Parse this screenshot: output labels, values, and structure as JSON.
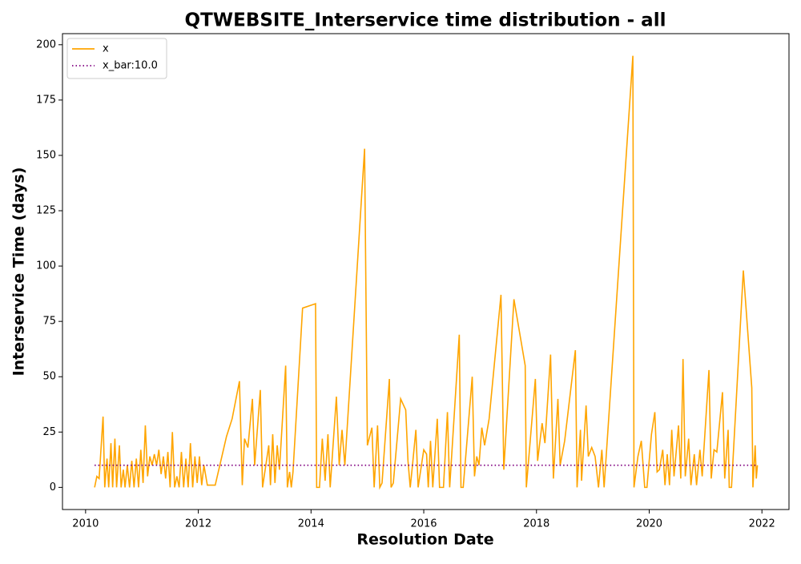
{
  "chart_data": {
    "type": "line",
    "title": "QTWEBSITE_Interservice time distribution - all",
    "xlabel": "Resolution Date",
    "ylabel": "Interservice Time (days)",
    "xlim": [
      2009.59,
      2022.48
    ],
    "xticks": [
      2010,
      2012,
      2014,
      2016,
      2018,
      2020,
      2022
    ],
    "ylim": [
      -10,
      205
    ],
    "yticks": [
      0,
      25,
      50,
      75,
      100,
      125,
      150,
      175,
      200
    ],
    "legend": "upper left",
    "grid": false,
    "series": [
      {
        "name": "x",
        "color": "#ffa500",
        "style": "solid",
        "x": [
          2010.16,
          2010.2,
          2010.24,
          2010.28,
          2010.31,
          2010.34,
          2010.38,
          2010.41,
          2010.45,
          2010.48,
          2010.52,
          2010.55,
          2010.6,
          2010.63,
          2010.67,
          2010.7,
          2010.74,
          2010.78,
          2010.82,
          2010.86,
          2010.9,
          2010.94,
          2010.98,
          2011.02,
          2011.06,
          2011.1,
          2011.14,
          2011.18,
          2011.22,
          2011.26,
          2011.3,
          2011.34,
          2011.38,
          2011.42,
          2011.46,
          2011.5,
          2011.54,
          2011.58,
          2011.62,
          2011.66,
          2011.7,
          2011.74,
          2011.78,
          2011.82,
          2011.86,
          2011.9,
          2011.94,
          2011.98,
          2012.02,
          2012.06,
          2012.1,
          2012.16,
          2012.3,
          2012.5,
          2012.6,
          2012.73,
          2012.78,
          2012.82,
          2012.88,
          2012.96,
          2013.0,
          2013.1,
          2013.14,
          2013.25,
          2013.28,
          2013.32,
          2013.36,
          2013.4,
          2013.44,
          2013.55,
          2013.58,
          2013.62,
          2013.65,
          2013.68,
          2013.85,
          2014.08,
          2014.1,
          2014.15,
          2014.2,
          2014.25,
          2014.3,
          2014.34,
          2014.45,
          2014.5,
          2014.55,
          2014.6,
          2014.95,
          2015.0,
          2015.08,
          2015.12,
          2015.18,
          2015.22,
          2015.26,
          2015.39,
          2015.42,
          2015.46,
          2015.59,
          2015.68,
          2015.72,
          2015.76,
          2015.8,
          2015.86,
          2015.9,
          2016.0,
          2016.05,
          2016.08,
          2016.12,
          2016.16,
          2016.24,
          2016.28,
          2016.35,
          2016.42,
          2016.46,
          2016.63,
          2016.66,
          2016.7,
          2016.86,
          2016.9,
          2016.94,
          2016.98,
          2017.03,
          2017.08,
          2017.16,
          2017.37,
          2017.42,
          2017.6,
          2017.8,
          2017.82,
          2017.98,
          2018.02,
          2018.1,
          2018.15,
          2018.25,
          2018.3,
          2018.38,
          2018.42,
          2018.5,
          2018.69,
          2018.72,
          2018.78,
          2018.8,
          2018.88,
          2018.92,
          2018.98,
          2019.04,
          2019.1,
          2019.16,
          2019.2,
          2019.71,
          2019.73,
          2019.8,
          2019.86,
          2019.92,
          2019.96,
          2020.04,
          2020.1,
          2020.14,
          2020.18,
          2020.24,
          2020.28,
          2020.32,
          2020.36,
          2020.4,
          2020.44,
          2020.52,
          2020.56,
          2020.6,
          2020.64,
          2020.7,
          2020.74,
          2020.8,
          2020.84,
          2020.9,
          2020.94,
          2021.06,
          2021.1,
          2021.15,
          2021.2,
          2021.3,
          2021.34,
          2021.4,
          2021.42,
          2021.46,
          2021.67,
          2021.82,
          2021.84,
          2021.88,
          2021.9,
          2021.92
        ],
        "values": [
          0,
          5,
          4,
          20,
          32,
          0,
          13,
          0,
          20,
          0,
          22,
          0,
          19,
          0,
          8,
          0,
          10,
          0,
          12,
          0,
          13,
          0,
          17,
          2,
          28,
          5,
          14,
          10,
          15,
          10,
          17,
          6,
          14,
          4,
          16,
          0,
          25,
          0,
          5,
          0,
          16,
          0,
          13,
          0,
          20,
          0,
          14,
          2,
          14,
          1,
          10,
          1,
          1,
          23,
          31,
          48,
          1,
          22,
          18,
          40,
          10,
          44,
          0,
          19,
          1,
          24,
          2,
          19,
          8,
          55,
          0,
          7,
          0,
          7,
          81,
          83,
          0,
          0,
          22,
          3,
          24,
          0,
          41,
          10,
          26,
          10,
          153,
          19,
          27,
          0,
          28,
          0,
          2,
          49,
          0,
          2,
          40,
          35,
          12,
          0,
          10,
          26,
          0,
          17,
          15,
          0,
          21,
          0,
          31,
          0,
          0,
          34,
          0,
          69,
          0,
          0,
          50,
          5,
          14,
          10,
          27,
          19,
          31,
          87,
          8,
          85,
          55,
          0,
          49,
          12,
          29,
          20,
          60,
          4,
          40,
          10,
          21,
          62,
          0,
          26,
          3,
          37,
          14,
          18,
          14,
          0,
          17,
          0,
          195,
          0,
          14,
          21,
          0,
          0,
          24,
          34,
          7,
          8,
          17,
          1,
          15,
          1,
          26,
          5,
          28,
          4,
          58,
          5,
          22,
          1,
          15,
          1,
          17,
          5,
          53,
          4,
          17,
          16,
          43,
          4,
          26,
          0,
          0,
          98,
          45,
          0,
          19,
          4,
          10
        ]
      },
      {
        "name": "x_bar:10.0",
        "color": "#800080",
        "style": "dotted",
        "x": [
          2010.16,
          2021.92
        ],
        "values": [
          10,
          10
        ]
      }
    ]
  }
}
